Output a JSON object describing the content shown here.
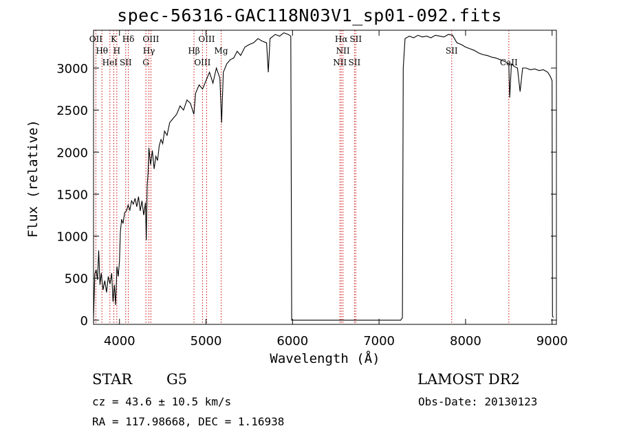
{
  "page": {
    "title": "spec-56316-GAC118N03V1_sp01-092.fits",
    "object_class": "STAR",
    "subclass": "G5",
    "survey": "LAMOST DR2",
    "cz_text": "cz = 43.6 ± 10.5 km/s",
    "obs_date_text": "Obs-Date: 20130123",
    "radec_text": "RA = 117.98668, DEC =    1.16938"
  },
  "chart_data": {
    "type": "line",
    "title": "spec-56316-GAC118N03V1_sp01-092.fits",
    "xlabel": "Wavelength (Å)",
    "ylabel": "Flux (relative)",
    "xlim": [
      3700,
      9050
    ],
    "ylim": [
      -50,
      3450
    ],
    "xticks": [
      4000,
      5000,
      6000,
      7000,
      8000,
      9000
    ],
    "yticks": [
      0,
      500,
      1000,
      1500,
      2000,
      2500,
      3000
    ],
    "grid": false,
    "line_color": "#000000",
    "marker_color": "#cc0000",
    "series": [
      {
        "points": [
          [
            3700,
            20
          ],
          [
            3715,
            550
          ],
          [
            3730,
            600
          ],
          [
            3745,
            480
          ],
          [
            3760,
            830
          ],
          [
            3775,
            420
          ],
          [
            3790,
            560
          ],
          [
            3810,
            360
          ],
          [
            3830,
            470
          ],
          [
            3850,
            330
          ],
          [
            3870,
            520
          ],
          [
            3890,
            430
          ],
          [
            3910,
            560
          ],
          [
            3925,
            220
          ],
          [
            3940,
            420
          ],
          [
            3955,
            180
          ],
          [
            3970,
            640
          ],
          [
            3985,
            520
          ],
          [
            4000,
            700
          ],
          [
            4010,
            1050
          ],
          [
            4025,
            1200
          ],
          [
            4040,
            1150
          ],
          [
            4060,
            1280
          ],
          [
            4080,
            1300
          ],
          [
            4100,
            1370
          ],
          [
            4120,
            1310
          ],
          [
            4140,
            1420
          ],
          [
            4160,
            1380
          ],
          [
            4180,
            1450
          ],
          [
            4200,
            1350
          ],
          [
            4220,
            1470
          ],
          [
            4240,
            1300
          ],
          [
            4260,
            1420
          ],
          [
            4280,
            1250
          ],
          [
            4300,
            1400
          ],
          [
            4310,
            950
          ],
          [
            4320,
            1600
          ],
          [
            4330,
            1750
          ],
          [
            4340,
            2050
          ],
          [
            4360,
            1850
          ],
          [
            4380,
            2020
          ],
          [
            4400,
            1800
          ],
          [
            4420,
            1950
          ],
          [
            4440,
            1900
          ],
          [
            4460,
            2080
          ],
          [
            4480,
            2150
          ],
          [
            4500,
            2100
          ],
          [
            4520,
            2250
          ],
          [
            4550,
            2200
          ],
          [
            4580,
            2350
          ],
          [
            4620,
            2400
          ],
          [
            4660,
            2450
          ],
          [
            4700,
            2550
          ],
          [
            4740,
            2500
          ],
          [
            4780,
            2620
          ],
          [
            4820,
            2580
          ],
          [
            4860,
            2450
          ],
          [
            4880,
            2700
          ],
          [
            4920,
            2800
          ],
          [
            4960,
            2750
          ],
          [
            5000,
            2850
          ],
          [
            5040,
            2950
          ],
          [
            5080,
            2820
          ],
          [
            5120,
            3000
          ],
          [
            5160,
            2880
          ],
          [
            5180,
            2350
          ],
          [
            5200,
            2950
          ],
          [
            5240,
            3050
          ],
          [
            5280,
            3100
          ],
          [
            5320,
            3120
          ],
          [
            5360,
            3200
          ],
          [
            5400,
            3150
          ],
          [
            5450,
            3250
          ],
          [
            5500,
            3280
          ],
          [
            5550,
            3300
          ],
          [
            5600,
            3350
          ],
          [
            5650,
            3320
          ],
          [
            5700,
            3300
          ],
          [
            5720,
            2950
          ],
          [
            5740,
            3350
          ],
          [
            5800,
            3400
          ],
          [
            5850,
            3380
          ],
          [
            5900,
            3420
          ],
          [
            5950,
            3400
          ],
          [
            5980,
            3380
          ],
          [
            5990,
            0
          ],
          [
            6100,
            0
          ],
          [
            6300,
            0
          ],
          [
            6500,
            0
          ],
          [
            6700,
            0
          ],
          [
            6900,
            0
          ],
          [
            7100,
            0
          ],
          [
            7250,
            0
          ],
          [
            7270,
            30
          ],
          [
            7280,
            3000
          ],
          [
            7300,
            3350
          ],
          [
            7350,
            3380
          ],
          [
            7400,
            3360
          ],
          [
            7450,
            3390
          ],
          [
            7500,
            3370
          ],
          [
            7550,
            3380
          ],
          [
            7600,
            3360
          ],
          [
            7650,
            3390
          ],
          [
            7700,
            3380
          ],
          [
            7750,
            3370
          ],
          [
            7800,
            3400
          ],
          [
            7850,
            3390
          ],
          [
            7900,
            3300
          ],
          [
            7950,
            3280
          ],
          [
            8000,
            3250
          ],
          [
            8050,
            3230
          ],
          [
            8100,
            3210
          ],
          [
            8150,
            3180
          ],
          [
            8200,
            3160
          ],
          [
            8250,
            3150
          ],
          [
            8300,
            3130
          ],
          [
            8350,
            3120
          ],
          [
            8400,
            3100
          ],
          [
            8450,
            3080
          ],
          [
            8500,
            3050
          ],
          [
            8510,
            2650
          ],
          [
            8530,
            3050
          ],
          [
            8560,
            3020
          ],
          [
            8600,
            3000
          ],
          [
            8630,
            2720
          ],
          [
            8660,
            3000
          ],
          [
            8700,
            3000
          ],
          [
            8750,
            2980
          ],
          [
            8800,
            2990
          ],
          [
            8850,
            2970
          ],
          [
            8900,
            2980
          ],
          [
            8950,
            2950
          ],
          [
            8980,
            2900
          ],
          [
            9000,
            2850
          ],
          [
            9005,
            50
          ],
          [
            9015,
            30
          ]
        ]
      }
    ],
    "lines": [
      {
        "name": "OII",
        "wavelength": 3727
      },
      {
        "name": "Hθ",
        "wavelength": 3797
      },
      {
        "name": "HeI",
        "wavelength": 3889
      },
      {
        "name": "K",
        "wavelength": 3934
      },
      {
        "name": "H",
        "wavelength": 3969
      },
      {
        "name": "SII",
        "wavelength": 4072
      },
      {
        "name": "Hδ",
        "wavelength": 4102
      },
      {
        "name": "Hγ",
        "wavelength": 4340
      },
      {
        "name": "G",
        "wavelength": 4305
      },
      {
        "name": "OIII",
        "wavelength": 4363
      },
      {
        "name": "Hβ",
        "wavelength": 4861
      },
      {
        "name": "OIII",
        "wavelength": 4959
      },
      {
        "name": "OIII",
        "wavelength": 5007
      },
      {
        "name": "Mg",
        "wavelength": 5175
      },
      {
        "name": "NII",
        "wavelength": 6548
      },
      {
        "name": "Hα",
        "wavelength": 6563
      },
      {
        "name": "NII",
        "wavelength": 6583
      },
      {
        "name": "SII",
        "wavelength": 6716
      },
      {
        "name": "SII",
        "wavelength": 6731
      },
      {
        "name": "SII",
        "wavelength": 7840
      },
      {
        "name": "CaII",
        "wavelength": 8500
      }
    ]
  }
}
